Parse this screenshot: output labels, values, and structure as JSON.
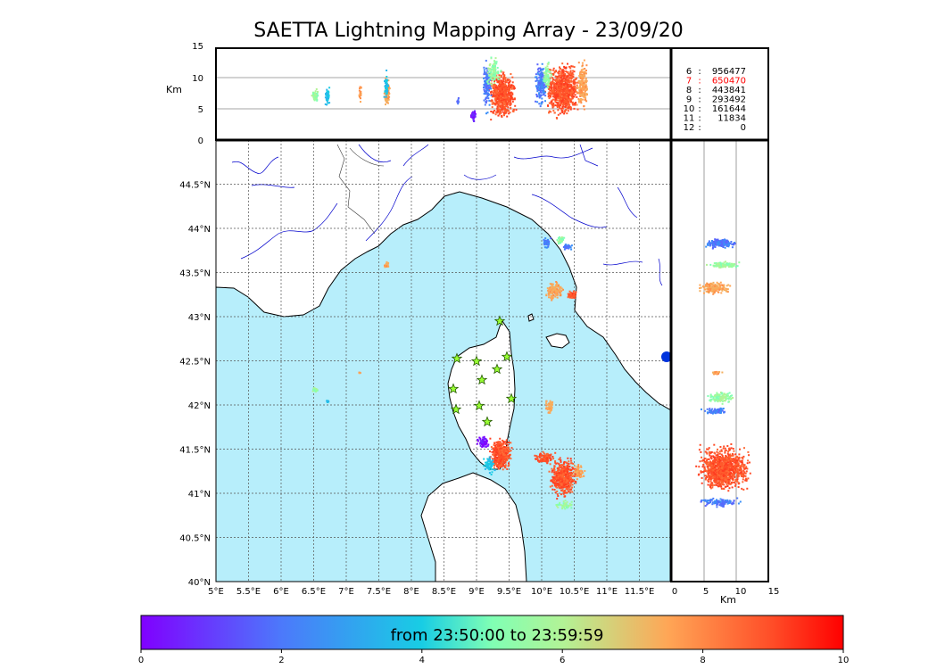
{
  "title": "SAETTA Lightning Mapping Array - 23/09/20",
  "top_panel": {
    "ylabel": "Km",
    "yticks": [
      "15",
      "10",
      "5",
      "0"
    ]
  },
  "side_panel": {
    "xlabel": "Km",
    "xticks": [
      "0",
      "5",
      "10",
      "15"
    ]
  },
  "map": {
    "lon_labels": [
      "5°E",
      "5.5°E",
      "6°E",
      "6.5°E",
      "7°E",
      "7.5°E",
      "8°E",
      "8.5°E",
      "9°E",
      "9.5°E",
      "10°E",
      "10.5°E",
      "11°E",
      "11.5°E"
    ],
    "lat_labels": [
      "40°N",
      "40.5°N",
      "41°N",
      "41.5°N",
      "42°N",
      "42.5°N",
      "43°N",
      "43.5°N",
      "44°N",
      "44.5°N"
    ],
    "sea_color": "#b7eefb",
    "land_color": "#ffffff",
    "coast_color": "#000000",
    "river_color": "#0000cc"
  },
  "counts": [
    {
      "label": "6",
      "value": "956477",
      "color": "#000000"
    },
    {
      "label": "7",
      "value": "650470",
      "color": "#ff0000"
    },
    {
      "label": "8",
      "value": "443841",
      "color": "#000000"
    },
    {
      "label": "9",
      "value": "293492",
      "color": "#000000"
    },
    {
      "label": "10",
      "value": "161644",
      "color": "#000000"
    },
    {
      "label": "11",
      "value": "11834",
      "color": "#000000"
    },
    {
      "label": "12",
      "value": "0",
      "color": "#000000"
    }
  ],
  "colorbar": {
    "text": "from 23:50:00 to 23:59:59",
    "ticks": [
      "0",
      "2",
      "4",
      "6",
      "8",
      "10"
    ],
    "colormap": "rainbow"
  },
  "station_icon": "star-icon"
}
